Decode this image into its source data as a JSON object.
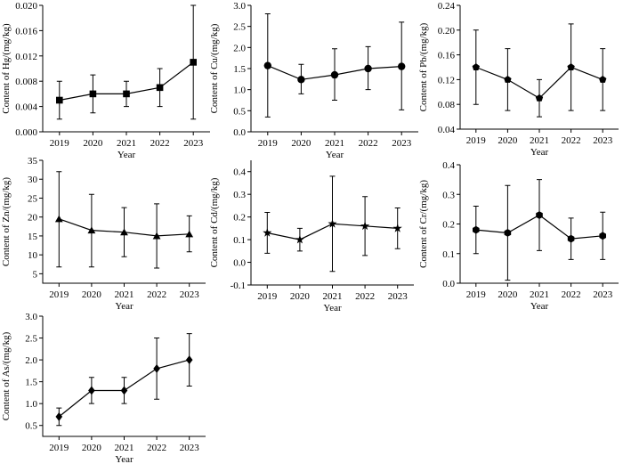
{
  "chart_data": [
    {
      "type": "line",
      "element": "Hg",
      "marker": "square",
      "x": [
        "2019",
        "2020",
        "2021",
        "2022",
        "2023"
      ],
      "values": [
        0.005,
        0.006,
        0.006,
        0.007,
        0.011
      ],
      "err_low": [
        0.002,
        0.003,
        0.004,
        0.004,
        0.002
      ],
      "err_high": [
        0.008,
        0.009,
        0.008,
        0.01,
        0.02
      ],
      "ylim": [
        0,
        0.02
      ],
      "yticks": [
        "0.000",
        "0.004",
        "0.008",
        "0.012",
        "0.016",
        "0.020"
      ],
      "xlabel": "Year",
      "ylabel": "Content of Hg/(mg/kg)"
    },
    {
      "type": "line",
      "element": "Cu",
      "marker": "circle",
      "x": [
        "2019",
        "2020",
        "2021",
        "2022",
        "2023"
      ],
      "values": [
        1.57,
        1.24,
        1.35,
        1.5,
        1.55
      ],
      "err_low": [
        0.35,
        0.9,
        0.75,
        1.0,
        0.52
      ],
      "err_high": [
        2.8,
        1.6,
        1.97,
        2.02,
        2.6
      ],
      "ylim": [
        0,
        3.0
      ],
      "yticks": [
        "0.0",
        "0.5",
        "1.0",
        "1.5",
        "2.0",
        "2.5",
        "3.0"
      ],
      "xlabel": "Year",
      "ylabel": "Content of Cu/(mg/kg)"
    },
    {
      "type": "line",
      "element": "Pb",
      "marker": "pentagon",
      "x": [
        "2019",
        "2020",
        "2021",
        "2022",
        "2023"
      ],
      "values": [
        0.14,
        0.12,
        0.09,
        0.14,
        0.12
      ],
      "err_low": [
        0.08,
        0.07,
        0.06,
        0.07,
        0.07
      ],
      "err_high": [
        0.2,
        0.17,
        0.12,
        0.21,
        0.17
      ],
      "ylim": [
        0.04,
        0.24
      ],
      "yticks": [
        "0.04",
        "0.08",
        "0.12",
        "0.16",
        "0.20",
        "0.24"
      ],
      "xlabel": "Year",
      "ylabel": "Content of Pb/(mg/kg)"
    },
    {
      "type": "line",
      "element": "Zn",
      "marker": "triangle",
      "x": [
        "2019",
        "2020",
        "2021",
        "2022",
        "2023"
      ],
      "values": [
        19.5,
        16.5,
        16.0,
        15.0,
        15.5
      ],
      "err_low": [
        6.8,
        6.8,
        9.5,
        6.5,
        10.8
      ],
      "err_high": [
        32.0,
        26.0,
        22.5,
        23.5,
        20.3
      ],
      "ylim": [
        2.5,
        35
      ],
      "yticks": [
        "5",
        "10",
        "15",
        "20",
        "25",
        "30",
        "35"
      ],
      "xlabel": "Year",
      "ylabel": "Content of Zn/(mg/kg)"
    },
    {
      "type": "line",
      "element": "Cd",
      "marker": "star",
      "x": [
        "2019",
        "2020",
        "2021",
        "2022",
        "2023"
      ],
      "values": [
        0.13,
        0.1,
        0.17,
        0.16,
        0.15
      ],
      "err_low": [
        0.04,
        0.05,
        -0.04,
        0.03,
        0.06
      ],
      "err_high": [
        0.22,
        0.15,
        0.38,
        0.29,
        0.24
      ],
      "ylim": [
        -0.1,
        0.45
      ],
      "yticks": [
        "-0.1",
        "0.0",
        "0.1",
        "0.2",
        "0.3",
        "0.4"
      ],
      "xlabel": "Year",
      "ylabel": "Content of Cd/(mg/kg)"
    },
    {
      "type": "line",
      "element": "Cr",
      "marker": "hexagon",
      "x": [
        "2019",
        "2020",
        "2021",
        "2022",
        "2023"
      ],
      "values": [
        0.18,
        0.17,
        0.23,
        0.15,
        0.16
      ],
      "err_low": [
        0.1,
        0.01,
        0.11,
        0.08,
        0.08
      ],
      "err_high": [
        0.26,
        0.33,
        0.35,
        0.22,
        0.24
      ],
      "ylim": [
        0,
        0.4
      ],
      "yticks": [
        "0.0",
        "0.1",
        "0.2",
        "0.3",
        "0.4"
      ],
      "xlabel": "Year",
      "ylabel": "Content of Cr/(mg/kg)"
    },
    {
      "type": "line",
      "element": "As",
      "marker": "diamond",
      "x": [
        "2019",
        "2020",
        "2021",
        "2022",
        "2023"
      ],
      "values": [
        0.7,
        1.3,
        1.3,
        1.8,
        2.0
      ],
      "err_low": [
        0.5,
        1.0,
        1.0,
        1.1,
        1.4
      ],
      "err_high": [
        0.9,
        1.6,
        1.6,
        2.5,
        2.6
      ],
      "ylim": [
        0.25,
        3.0
      ],
      "yticks": [
        "0.5",
        "1.0",
        "1.5",
        "2.0",
        "2.5",
        "3.0"
      ],
      "xlabel": "Year",
      "ylabel": "Content of As/(mg/kg)"
    }
  ]
}
